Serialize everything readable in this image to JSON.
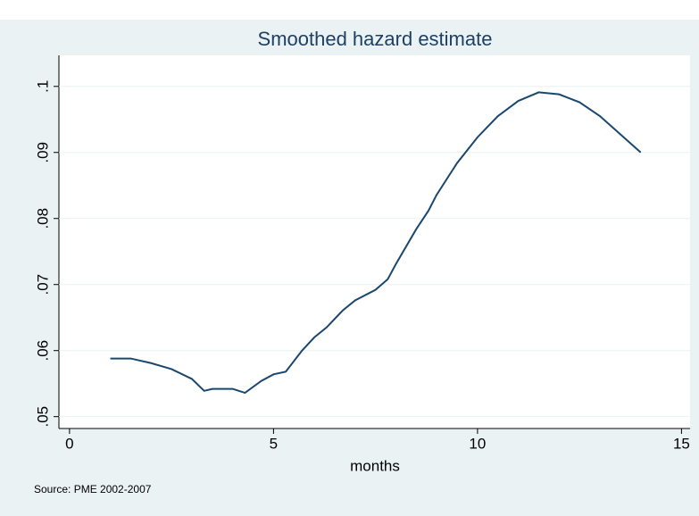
{
  "chart_data": {
    "type": "line",
    "title": "Smoothed hazard estimate",
    "x_label": "months",
    "note": "Source: PME 2002-2007",
    "x": [
      1,
      1.5,
      2,
      2.5,
      3,
      3.3,
      3.5,
      4,
      4.3,
      4.7,
      5,
      5.3,
      5.7,
      6,
      6.3,
      6.7,
      7,
      7.5,
      7.8,
      8,
      8.5,
      8.8,
      9,
      9.5,
      10,
      10.5,
      11,
      11.5,
      12,
      12.5,
      13,
      14
    ],
    "series": [
      {
        "color": "#1a476f",
        "values": [
          0.0588,
          0.0588,
          0.0581,
          0.0572,
          0.0557,
          0.0539,
          0.0542,
          0.0542,
          0.0536,
          0.0554,
          0.0564,
          0.0568,
          0.06,
          0.062,
          0.0635,
          0.0661,
          0.0676,
          0.0692,
          0.0708,
          0.0731,
          0.0784,
          0.0812,
          0.0836,
          0.0884,
          0.0923,
          0.0955,
          0.0978,
          0.0991,
          0.0988,
          0.0976,
          0.0955,
          0.09
        ]
      }
    ],
    "xlim": [
      -0.26,
      15.21
    ],
    "xticks": [
      0,
      5,
      10,
      15
    ],
    "ylim": [
      0.0482,
      0.1047
    ],
    "yticks": [
      {
        "value": 0.05,
        "label": ".05"
      },
      {
        "value": 0.06,
        "label": ".06"
      },
      {
        "value": 0.07,
        "label": ".07"
      },
      {
        "value": 0.08,
        "label": ".08"
      },
      {
        "value": 0.09,
        "label": ".09"
      },
      {
        "value": 0.1,
        "label": ".1"
      }
    ],
    "grid": true
  }
}
